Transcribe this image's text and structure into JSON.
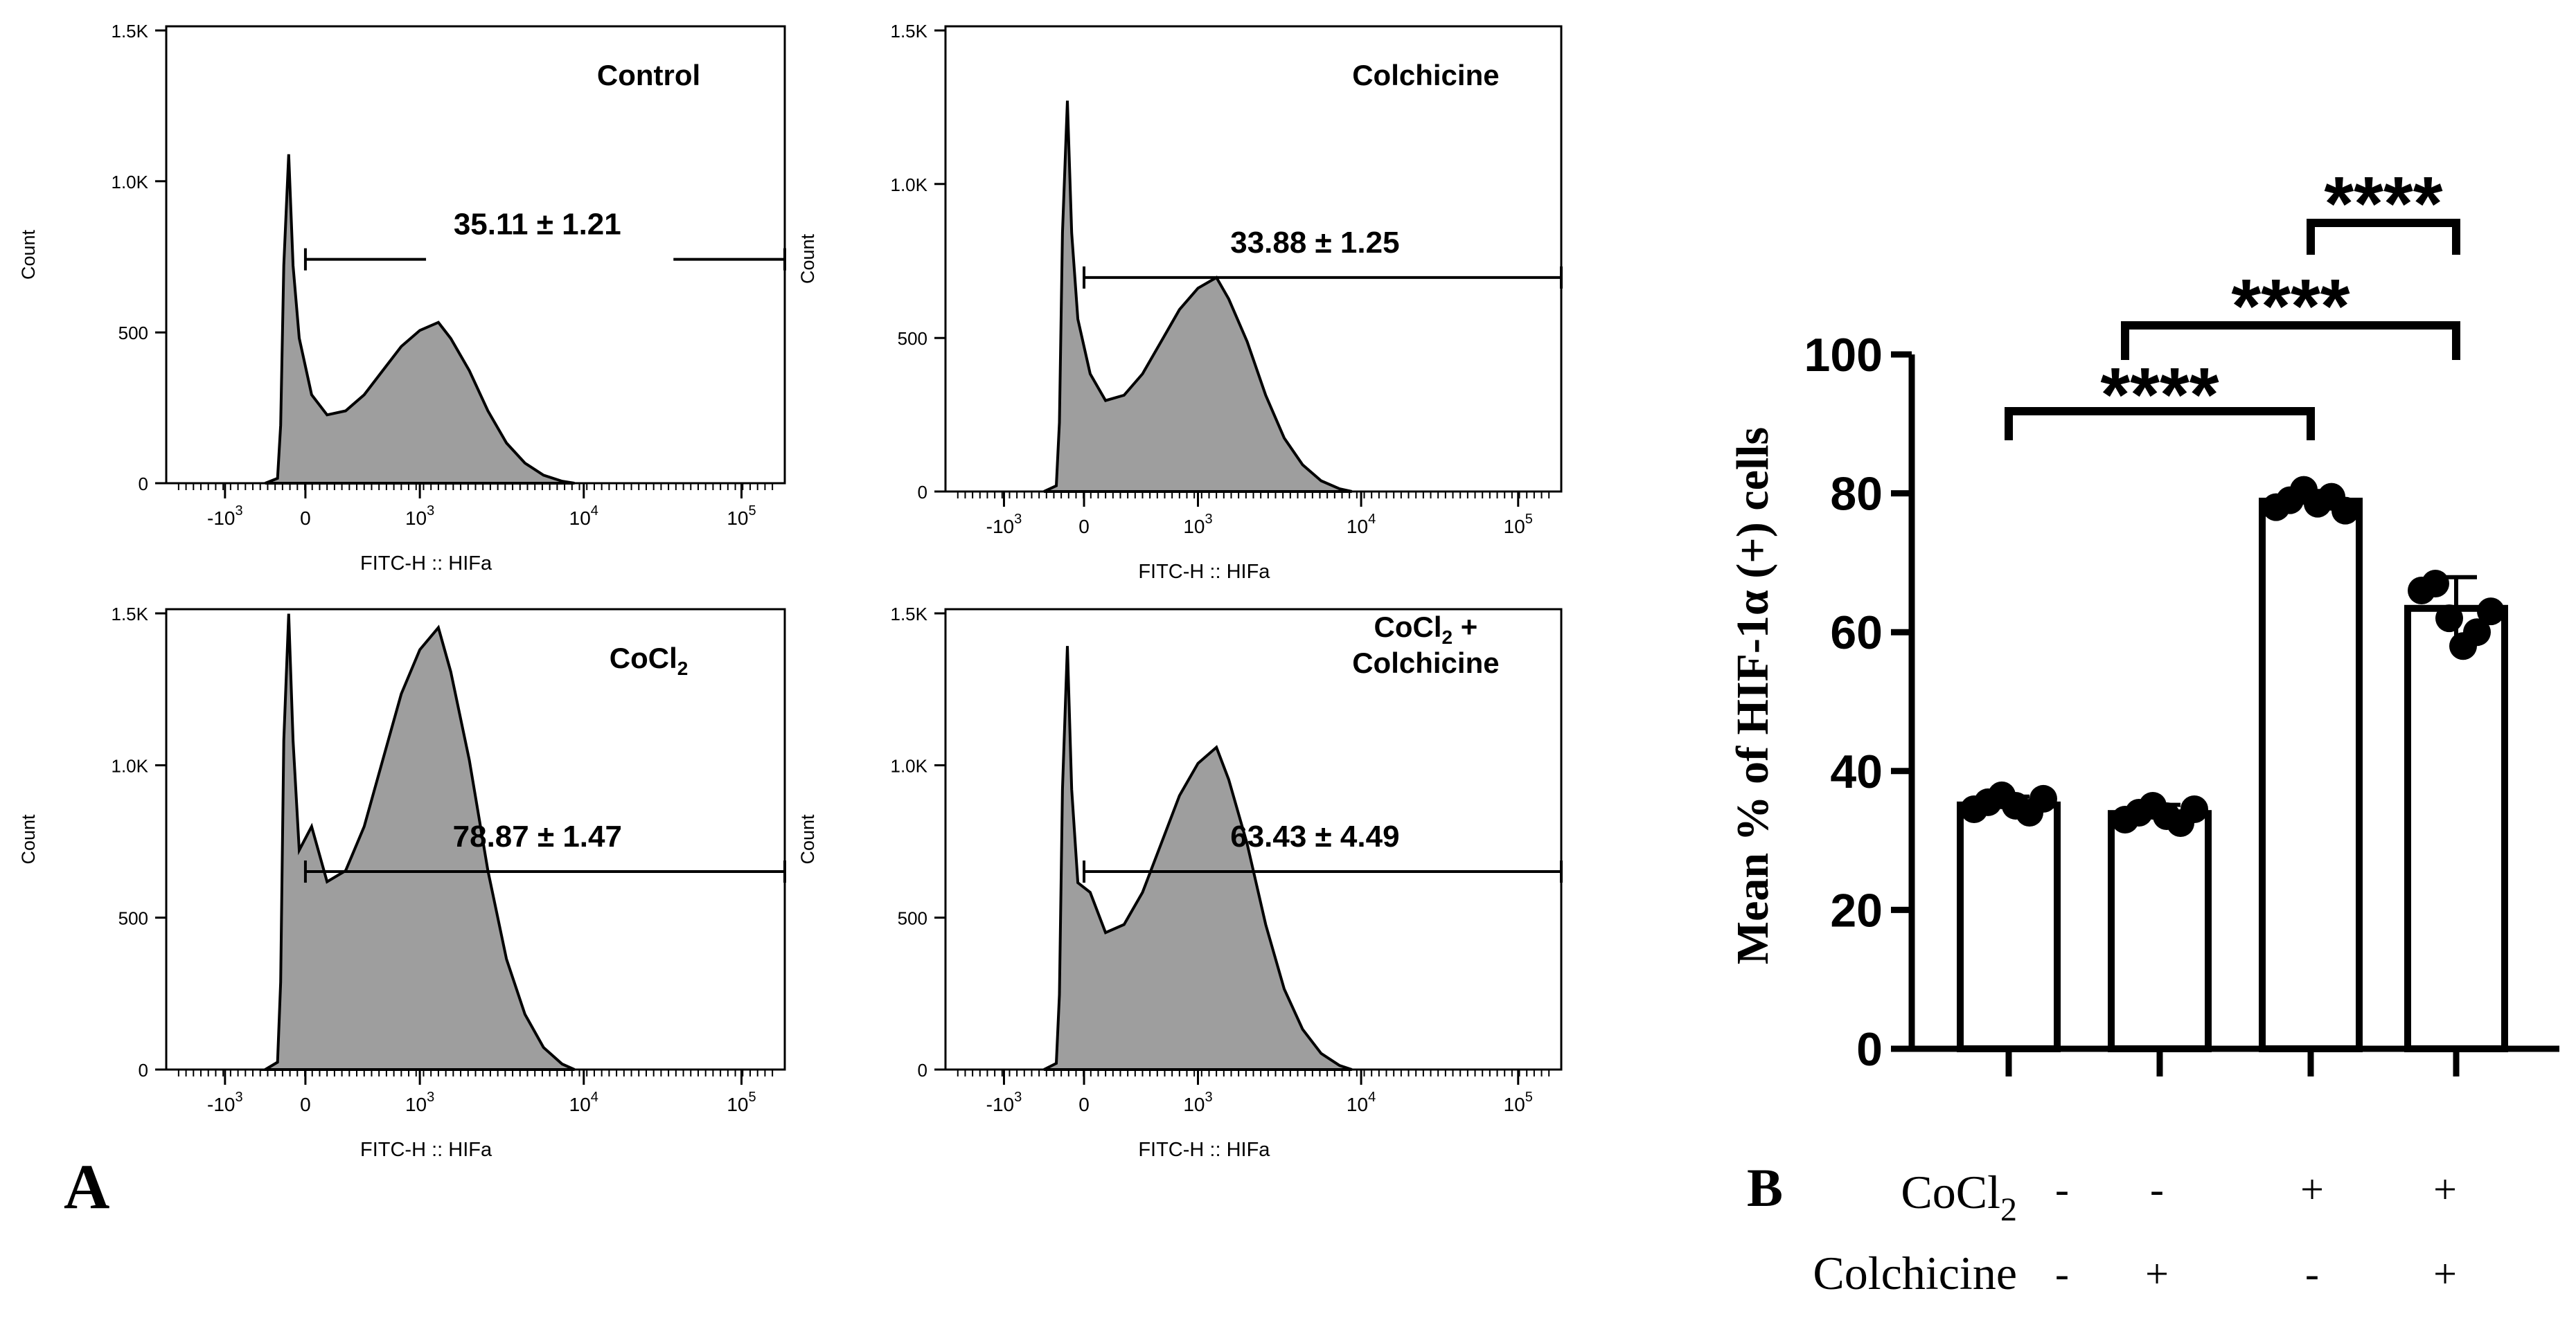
{
  "panel_a": {
    "label": "A",
    "x_axis_label": "FITC-H :: HIFa",
    "y_axis_label": "Count",
    "y_ticks": [
      "0",
      "500",
      "1.0K",
      "1.5K"
    ],
    "x_ticks": [
      {
        "base": "-10",
        "exp": "3"
      },
      {
        "base": "0",
        "exp": ""
      },
      {
        "base": "10",
        "exp": "3"
      },
      {
        "base": "10",
        "exp": "4"
      },
      {
        "base": "10",
        "exp": "5"
      }
    ],
    "histograms": [
      {
        "title": "Control",
        "gate_value": "35.11 ± 1.21"
      },
      {
        "title": "Colchicine",
        "gate_value": "33.88 ± 1.25"
      },
      {
        "title_main": "CoCl",
        "title_sub": "2",
        "gate_value": "78.87 ± 1.47"
      },
      {
        "title_line1_main": "CoCl",
        "title_line1_sub": "2",
        "title_line1_tail": " +",
        "title_line2": "Colchicine",
        "gate_value": "63.43 ± 4.49"
      }
    ]
  },
  "panel_b": {
    "label": "B",
    "y_label": "Mean % of HIF-1α (+) cells",
    "y_ticks": [
      "0",
      "20",
      "40",
      "60",
      "80",
      "100"
    ],
    "significance": "****",
    "cocl2_label_main": "CoCl",
    "cocl2_label_sub": "2",
    "colchicine_label": "Colchicine",
    "cocl2_row": [
      "-",
      "-",
      "+",
      "+"
    ],
    "colchicine_row": [
      "-",
      "+",
      "-",
      "+"
    ]
  },
  "chart_data": [
    {
      "type": "bar",
      "ylabel": "Mean % of HIF-1α (+) cells",
      "ylim": [
        0,
        100
      ],
      "categories": [
        "CoCl2 - / Colchicine -",
        "CoCl2 - / Colchicine +",
        "CoCl2 + / Colchicine -",
        "CoCl2 + / Colchicine +"
      ],
      "values": [
        35.11,
        33.88,
        78.87,
        63.43
      ],
      "errors": [
        1.21,
        1.25,
        1.47,
        4.49
      ],
      "points": [
        [
          34.5,
          35.5,
          36.5,
          35.0,
          34.0,
          36.0
        ],
        [
          33.0,
          34.0,
          35.0,
          33.5,
          32.5,
          34.5
        ],
        [
          78.0,
          79.0,
          80.5,
          78.5,
          79.5,
          77.5
        ],
        [
          66.0,
          67.0,
          62.0,
          58.0,
          60.0,
          63.0
        ]
      ],
      "comparisons": [
        {
          "from": 0,
          "to": 2,
          "label": "****"
        },
        {
          "from": 1,
          "to": 3,
          "label": "****"
        },
        {
          "from": 2,
          "to": 3,
          "label": "****"
        }
      ]
    }
  ]
}
